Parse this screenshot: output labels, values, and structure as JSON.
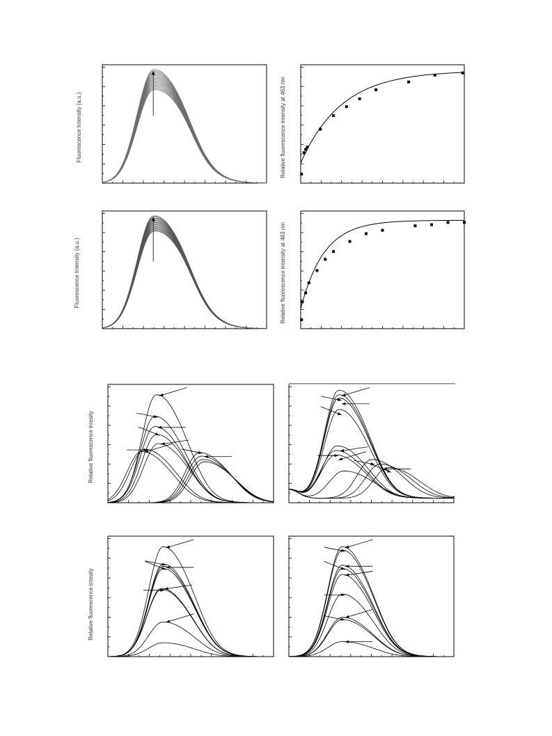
{
  "figure": {
    "ylabels": {
      "fluor_intensity": "Fluorescence Intensity (a.u.)",
      "relative_463": "Relative fluorescence intensity at 463 nm",
      "relative": "Relative fluorescence intesity"
    }
  },
  "chart_data": [
    {
      "id": "A",
      "type": "line",
      "title": "",
      "xlabel": "",
      "ylabel": "Fluorescence Intensity (a.u.)",
      "x": [
        0,
        0.05,
        0.1,
        0.15,
        0.2,
        0.25,
        0.3,
        0.35,
        0.4,
        0.45,
        0.5,
        0.55,
        0.6,
        0.65,
        0.7,
        0.75,
        0.8,
        0.85,
        0.9,
        0.95,
        1.0
      ],
      "ylim": [
        0,
        1.05
      ],
      "series_count": 15,
      "shoulder_peak": [
        0,
        0.06,
        0.17,
        0.35,
        0.58,
        0.8,
        0.96,
        1.0,
        0.93,
        0.84,
        0.76,
        0.68,
        0.58,
        0.47,
        0.36,
        0.26,
        0.17,
        0.1,
        0.05,
        0.02,
        0.0
      ],
      "peak_heights": [
        0.82,
        1.0
      ],
      "arrow": "up",
      "color": "#6e6e6e"
    },
    {
      "id": "B",
      "type": "scatter",
      "title": "",
      "xlabel": "",
      "ylabel": "Relative fluorescence intensity at 463 nm",
      "x": [
        0.5,
        2,
        3,
        4,
        12,
        20,
        28,
        36,
        46,
        66,
        82,
        99
      ],
      "values": [
        0.08,
        0.27,
        0.3,
        0.32,
        0.48,
        0.6,
        0.68,
        0.75,
        0.83,
        0.9,
        0.96,
        0.98
      ],
      "fit": "saturation",
      "ylim": [
        0,
        1.05
      ],
      "xlim": [
        0,
        100
      ]
    },
    {
      "id": "C",
      "type": "line",
      "title": "",
      "xlabel": "",
      "ylabel": "Fluorescence Intensity (a.u.)",
      "x": [
        0,
        0.05,
        0.1,
        0.15,
        0.2,
        0.25,
        0.3,
        0.35,
        0.4,
        0.45,
        0.5,
        0.55,
        0.6,
        0.65,
        0.7,
        0.75,
        0.8,
        0.85,
        0.9,
        0.95,
        1.0
      ],
      "ylim": [
        0,
        1.05
      ],
      "series_count": 15,
      "shoulder_peak": [
        0.01,
        0.08,
        0.2,
        0.39,
        0.62,
        0.82,
        0.96,
        1.0,
        0.93,
        0.84,
        0.75,
        0.66,
        0.56,
        0.45,
        0.34,
        0.24,
        0.16,
        0.1,
        0.05,
        0.02,
        0.01
      ],
      "peak_heights": [
        0.86,
        1.0
      ],
      "arrow": "up",
      "color": "#555555"
    },
    {
      "id": "D",
      "type": "scatter",
      "title": "",
      "xlabel": "",
      "ylabel": "Relative fluorescence intensity at 463 nm",
      "x": [
        0.5,
        1,
        3,
        5,
        10,
        15,
        20,
        30,
        40,
        50,
        70,
        80,
        90,
        100
      ],
      "values": [
        0.08,
        0.24,
        0.32,
        0.41,
        0.52,
        0.62,
        0.69,
        0.78,
        0.85,
        0.88,
        0.92,
        0.93,
        0.95,
        0.95
      ],
      "fit": "saturation",
      "ylim": [
        0,
        1.05
      ],
      "xlim": [
        0,
        100
      ]
    },
    {
      "id": "E",
      "type": "line",
      "title": "",
      "xlabel": "",
      "ylabel": "Relative fluorescence intesity",
      "x": [
        0,
        0.05,
        0.1,
        0.15,
        0.2,
        0.25,
        0.3,
        0.35,
        0.4,
        0.45,
        0.5,
        0.55,
        0.6,
        0.65,
        0.7,
        0.75,
        0.8,
        0.85,
        0.9,
        0.95,
        1.0
      ],
      "ylim": [
        0,
        1.05
      ],
      "peaks": [
        {
          "center": 0.29,
          "height": 0.95
        },
        {
          "center": 0.28,
          "height": 0.76
        },
        {
          "center": 0.28,
          "height": 0.67
        },
        {
          "center": 0.29,
          "height": 0.6
        },
        {
          "center": 0.3,
          "height": 0.52
        },
        {
          "center": 0.22,
          "height": 0.47
        },
        {
          "center": 0.2,
          "height": 0.45
        },
        {
          "center": 0.55,
          "height": 0.44
        },
        {
          "center": 0.56,
          "height": 0.41
        },
        {
          "center": 0.57,
          "height": 0.38
        },
        {
          "center": 0.58,
          "height": 0.36
        }
      ],
      "arrows": 9
    },
    {
      "id": "F",
      "type": "line",
      "title": "",
      "xlabel": "",
      "ylabel": "",
      "x": [
        0,
        0.05,
        0.1,
        0.15,
        0.2,
        0.25,
        0.3,
        0.35,
        0.4,
        0.45,
        0.5,
        0.55,
        0.6,
        0.65,
        0.7,
        0.75,
        0.8,
        0.85,
        0.9,
        0.95,
        1.0
      ],
      "ylim": [
        0,
        1.05
      ],
      "peaks": [
        {
          "center": 0.3,
          "height": 0.95
        },
        {
          "center": 0.3,
          "height": 0.91
        },
        {
          "center": 0.3,
          "height": 0.88
        },
        {
          "center": 0.3,
          "height": 0.78
        },
        {
          "center": 0.29,
          "height": 0.46
        },
        {
          "center": 0.28,
          "height": 0.42
        },
        {
          "center": 0.28,
          "height": 0.38
        },
        {
          "center": 0.5,
          "height": 0.34
        },
        {
          "center": 0.55,
          "height": 0.3
        },
        {
          "center": 0.6,
          "height": 0.27
        },
        {
          "center": 0.33,
          "height": 0.24
        }
      ],
      "arrows": 10
    },
    {
      "id": "G",
      "type": "line",
      "title": "",
      "xlabel": "",
      "ylabel": "Relative fluorescence intesity",
      "x": [
        0,
        0.05,
        0.1,
        0.15,
        0.2,
        0.25,
        0.3,
        0.35,
        0.4,
        0.45,
        0.5,
        0.55,
        0.6,
        0.65,
        0.7,
        0.75,
        0.8,
        0.85,
        0.9,
        0.95,
        1.0
      ],
      "ylim": [
        0,
        1.05
      ],
      "peaks": [
        {
          "center": 0.33,
          "height": 0.95
        },
        {
          "center": 0.33,
          "height": 0.8
        },
        {
          "center": 0.33,
          "height": 0.78
        },
        {
          "center": 0.33,
          "height": 0.76
        },
        {
          "center": 0.32,
          "height": 0.59
        },
        {
          "center": 0.32,
          "height": 0.58
        },
        {
          "center": 0.33,
          "height": 0.3
        },
        {
          "center": 0.33,
          "height": 0.12
        }
      ],
      "arrows": 7
    },
    {
      "id": "H",
      "type": "line",
      "title": "",
      "xlabel": "",
      "ylabel": "",
      "x": [
        0,
        0.05,
        0.1,
        0.15,
        0.2,
        0.25,
        0.3,
        0.35,
        0.4,
        0.45,
        0.5,
        0.55,
        0.6,
        0.65,
        0.7,
        0.75,
        0.8,
        0.85,
        0.9,
        0.95,
        1.0
      ],
      "ylim": [
        0,
        1.05
      ],
      "peaks": [
        {
          "center": 0.32,
          "height": 0.95
        },
        {
          "center": 0.32,
          "height": 0.92
        },
        {
          "center": 0.32,
          "height": 0.79
        },
        {
          "center": 0.32,
          "height": 0.76
        },
        {
          "center": 0.32,
          "height": 0.71
        },
        {
          "center": 0.32,
          "height": 0.54
        },
        {
          "center": 0.32,
          "height": 0.34
        },
        {
          "center": 0.32,
          "height": 0.32
        },
        {
          "center": 0.32,
          "height": 0.13
        }
      ],
      "arrows": 9
    }
  ]
}
